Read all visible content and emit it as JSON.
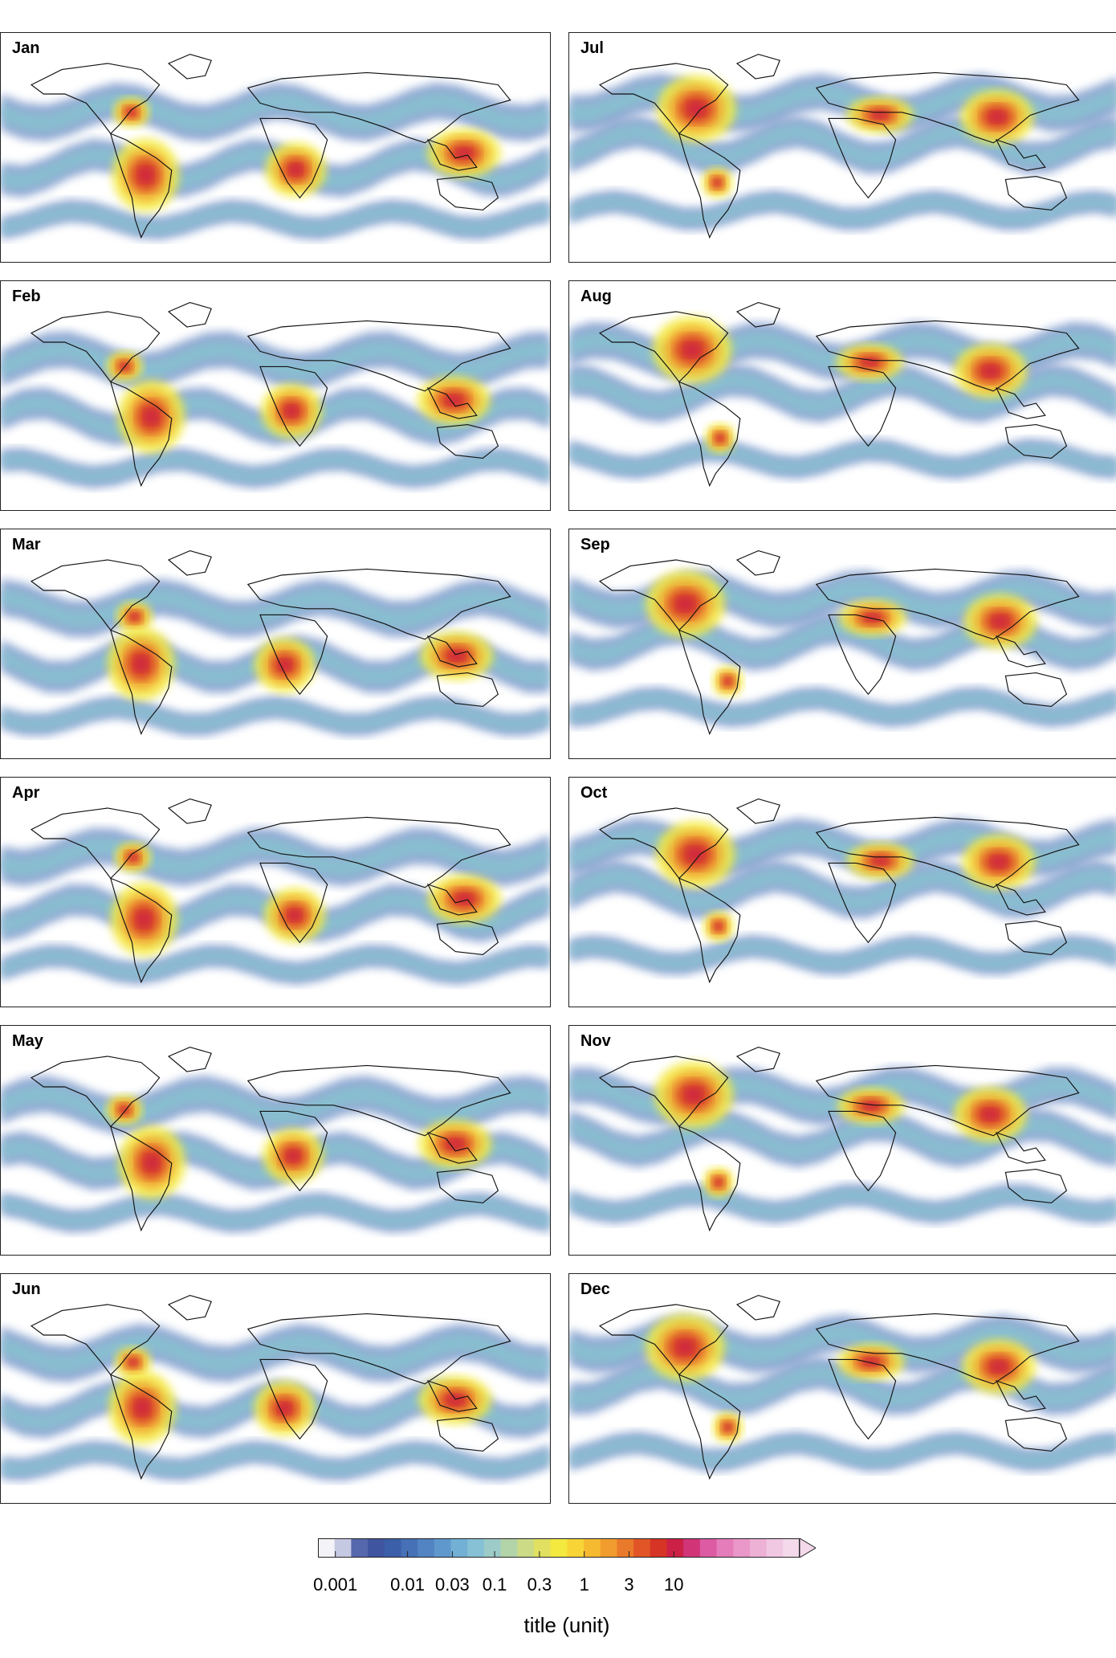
{
  "panels": [
    {
      "label": "Jan"
    },
    {
      "label": "Jul"
    },
    {
      "label": "Feb"
    },
    {
      "label": "Aug"
    },
    {
      "label": "Mar"
    },
    {
      "label": "Sep"
    },
    {
      "label": "Apr"
    },
    {
      "label": "Oct"
    },
    {
      "label": "May"
    },
    {
      "label": "Nov"
    },
    {
      "label": "Jun"
    },
    {
      "label": "Dec"
    }
  ],
  "legend": {
    "title": "title (unit)",
    "ticks": [
      "0.001",
      "0.01",
      "0.03",
      "0.1",
      "0.3",
      "1",
      "3",
      "10"
    ],
    "colors": [
      "#f3f3f8",
      "#c6c9e2",
      "#5567ad",
      "#4055a0",
      "#3b5fa8",
      "#4671b6",
      "#5283c2",
      "#5f98cd",
      "#72b0d6",
      "#86c1d5",
      "#9dcbc8",
      "#b3d3a9",
      "#cbdb86",
      "#e1e060",
      "#f4ea3f",
      "#f8d437",
      "#f6ba31",
      "#f19c2e",
      "#ea7a2b",
      "#e25526",
      "#d63425",
      "#cd2046",
      "#d13578",
      "#dd5ba3",
      "#e57dbb",
      "#ea98c9",
      "#eeb1d6",
      "#f1c8e2",
      "#f4d9eb"
    ]
  }
}
